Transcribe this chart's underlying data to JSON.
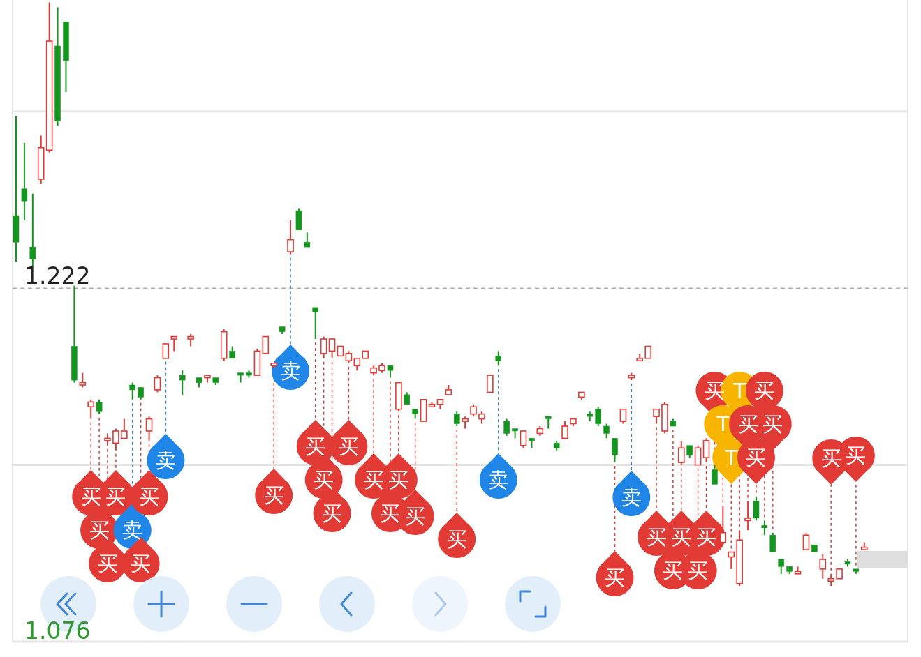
{
  "chart_data": {
    "type": "candlestick",
    "tick_labels": "y",
    "grid": "y",
    "categories": [
      null,
      null,
      null,
      null,
      null,
      null,
      null,
      null,
      null,
      null,
      null,
      null,
      null,
      null,
      null,
      null,
      null,
      null,
      null,
      null,
      null,
      null,
      null,
      null,
      null,
      null,
      null,
      null,
      null,
      null,
      null,
      null,
      null,
      null,
      null,
      null,
      null,
      null,
      null,
      null,
      null,
      null,
      null,
      null,
      null,
      null,
      null,
      null,
      null,
      null,
      null,
      null,
      null,
      null,
      null,
      null,
      null,
      null,
      null,
      null,
      null,
      null,
      null,
      null,
      null,
      null,
      null,
      null,
      null,
      null,
      null,
      null,
      null,
      null,
      null,
      null,
      null,
      null,
      null,
      null,
      null,
      null,
      null,
      null,
      null,
      null,
      null,
      null,
      null,
      null,
      null,
      null,
      null,
      null,
      null,
      null,
      null,
      null,
      null,
      null,
      null,
      null,
      null
    ],
    "ohlc": [
      [
        1.252,
        1.293,
        1.233,
        1.241
      ],
      [
        1.263,
        1.282,
        1.25,
        1.258
      ],
      [
        1.239,
        1.261,
        1.231,
        1.234
      ],
      [
        1.267,
        1.285,
        1.265,
        1.28
      ],
      [
        1.279,
        1.34,
        1.278,
        1.324
      ],
      [
        1.322,
        1.338,
        1.289,
        1.291
      ],
      [
        1.332,
        1.332,
        1.303,
        1.316
      ],
      [
        1.198,
        1.223,
        1.183,
        1.184
      ],
      [
        1.182,
        1.187,
        1.181,
        1.183
      ],
      [
        1.173,
        1.176,
        1.168,
        1.175
      ],
      [
        1.175,
        1.176,
        1.17,
        1.171
      ],
      [
        1.159,
        1.162,
        1.157,
        1.16
      ],
      [
        1.158,
        1.164,
        1.155,
        1.163
      ],
      [
        1.16,
        1.168,
        1.16,
        1.163
      ],
      [
        1.182,
        1.183,
        1.176,
        1.18
      ],
      [
        1.181,
        1.181,
        1.176,
        1.177
      ],
      [
        1.163,
        1.169,
        1.159,
        1.168
      ],
      [
        1.18,
        1.186,
        1.179,
        1.185
      ],
      [
        1.193,
        1.199,
        1.193,
        1.199
      ],
      [
        1.201,
        1.202,
        1.196,
        1.202
      ],
      [
        1.186,
        1.188,
        1.178,
        1.184
      ],
      [
        1.201,
        1.203,
        1.198,
        1.202
      ],
      [
        1.185,
        1.185,
        1.181,
        1.183
      ],
      [
        1.185,
        1.186,
        1.183,
        1.186
      ],
      [
        1.185,
        1.185,
        1.182,
        1.183
      ],
      [
        1.193,
        1.205,
        1.192,
        1.204
      ],
      [
        1.196,
        1.198,
        1.193,
        1.193
      ],
      [
        1.187,
        1.187,
        1.183,
        1.186
      ],
      [
        1.187,
        1.188,
        1.185,
        1.186
      ],
      [
        1.186,
        1.197,
        1.186,
        1.196
      ],
      [
        1.195,
        1.202,
        1.195,
        1.202
      ],
      [
        1.19,
        1.191,
        1.189,
        1.191
      ],
      [
        1.206,
        1.206,
        1.203,
        1.204
      ],
      [
        1.237,
        1.25,
        1.236,
        1.242
      ],
      [
        1.254,
        1.255,
        1.246,
        1.246
      ],
      [
        1.241,
        1.245,
        1.239,
        1.239
      ],
      [
        1.214,
        1.214,
        1.201,
        1.212
      ],
      [
        1.195,
        1.202,
        1.193,
        1.201
      ],
      [
        1.196,
        1.201,
        1.193,
        1.201
      ],
      [
        1.194,
        1.198,
        1.194,
        1.198
      ],
      [
        1.192,
        1.196,
        1.191,
        1.195
      ],
      [
        1.19,
        1.193,
        1.188,
        1.193
      ],
      [
        1.193,
        1.196,
        1.193,
        1.196
      ],
      [
        1.187,
        1.19,
        1.186,
        1.189
      ],
      [
        1.188,
        1.191,
        1.187,
        1.19
      ],
      [
        1.19,
        1.19,
        1.185,
        1.188
      ],
      [
        1.172,
        1.183,
        1.171,
        1.183
      ],
      [
        1.178,
        1.179,
        1.174,
        1.174
      ],
      [
        1.172,
        1.172,
        1.168,
        1.17
      ],
      [
        1.167,
        1.176,
        1.167,
        1.176
      ],
      [
        1.173,
        1.175,
        1.173,
        1.174
      ],
      [
        1.174,
        1.176,
        1.172,
        1.176
      ],
      [
        1.178,
        1.182,
        1.178,
        1.18
      ],
      [
        1.17,
        1.171,
        1.165,
        1.166
      ],
      [
        1.167,
        1.169,
        1.164,
        1.168
      ],
      [
        1.17,
        1.174,
        1.169,
        1.173
      ],
      [
        1.168,
        1.171,
        1.166,
        1.17
      ],
      [
        1.179,
        1.186,
        1.179,
        1.186
      ],
      [
        1.194,
        1.196,
        1.19,
        1.192
      ],
      [
        1.167,
        1.168,
        1.161,
        1.162
      ],
      [
        1.164,
        1.164,
        1.16,
        1.163
      ],
      [
        1.157,
        1.163,
        1.156,
        1.163
      ],
      [
        1.16,
        1.16,
        1.156,
        1.159
      ],
      [
        1.162,
        1.165,
        1.161,
        1.164
      ],
      [
        1.169,
        1.169,
        1.164,
        1.168
      ],
      [
        1.158,
        1.159,
        1.155,
        1.156
      ],
      [
        1.16,
        1.167,
        1.16,
        1.165
      ],
      [
        1.166,
        1.168,
        1.165,
        1.168
      ],
      [
        1.177,
        1.179,
        1.176,
        1.179
      ],
      [
        1.17,
        1.171,
        1.167,
        1.169
      ],
      [
        1.172,
        1.173,
        1.165,
        1.166
      ],
      [
        1.165,
        1.166,
        1.16,
        1.162
      ],
      [
        1.16,
        1.16,
        1.15,
        1.153
      ],
      [
        1.167,
        1.172,
        1.166,
        1.172
      ],
      [
        1.185,
        1.187,
        1.184,
        1.186
      ],
      [
        1.192,
        1.195,
        1.192,
        1.193
      ],
      [
        1.193,
        1.198,
        1.193,
        1.198
      ],
      [
        1.169,
        1.172,
        1.166,
        1.172
      ],
      [
        1.163,
        1.175,
        1.162,
        1.174
      ],
      [
        1.167,
        1.168,
        1.165,
        1.165
      ],
      [
        1.15,
        1.159,
        1.149,
        1.156
      ],
      [
        1.157,
        1.157,
        1.152,
        1.153
      ],
      [
        1.149,
        1.157,
        1.149,
        1.156
      ],
      [
        1.152,
        1.16,
        1.15,
        1.159
      ],
      [
        1.147,
        1.149,
        1.141,
        1.141
      ],
      [
        1.117,
        1.132,
        1.116,
        1.121
      ],
      [
        1.111,
        1.113,
        1.106,
        1.113
      ],
      [
        1.1,
        1.122,
        1.099,
        1.118
      ],
      [
        1.126,
        1.134,
        1.122,
        1.127
      ],
      [
        1.134,
        1.136,
        1.126,
        1.127
      ],
      [
        1.124,
        1.126,
        1.12,
        1.123
      ],
      [
        1.12,
        1.121,
        1.113,
        1.113
      ],
      [
        1.11,
        1.11,
        1.104,
        1.107
      ],
      [
        1.107,
        1.107,
        1.104,
        1.105
      ],
      [
        1.104,
        1.107,
        1.104,
        1.105
      ],
      [
        1.114,
        1.121,
        1.114,
        1.12
      ],
      [
        1.116,
        1.116,
        1.113,
        1.113
      ],
      [
        1.106,
        1.112,
        1.102,
        1.11
      ],
      [
        1.101,
        1.104,
        1.099,
        1.102
      ],
      [
        1.102,
        1.106,
        1.102,
        1.106
      ],
      [
        1.109,
        1.11,
        1.107,
        1.108
      ],
      [
        1.106,
        1.106,
        1.104,
        1.105
      ],
      [
        1.114,
        1.117,
        1.114,
        1.115
      ]
    ],
    "ylim": [
      1.076,
      1.341
    ],
    "yticks": [
      1.076,
      {
        "value": 1.149,
        "label": null
      },
      {
        "value": 1.222,
        "label": "1.222"
      },
      {
        "value": 1.295,
        "label": null
      }
    ],
    "ref_lines": [
      {
        "axis": "y",
        "value": 1.222,
        "line_style": "dashed"
      }
    ],
    "annotations": [
      "买",
      "买",
      "买",
      "买",
      "卖",
      "买",
      "买",
      "卖",
      "买",
      "卖",
      "买",
      "买",
      "买",
      "买",
      "买",
      "买",
      "买",
      "买",
      "买",
      "卖",
      "买",
      "卖",
      "买",
      "买",
      "买",
      "买",
      "买",
      "买",
      "T",
      "T",
      "T",
      "买",
      "买",
      "买",
      "买",
      "买",
      "买"
    ]
  }
}
